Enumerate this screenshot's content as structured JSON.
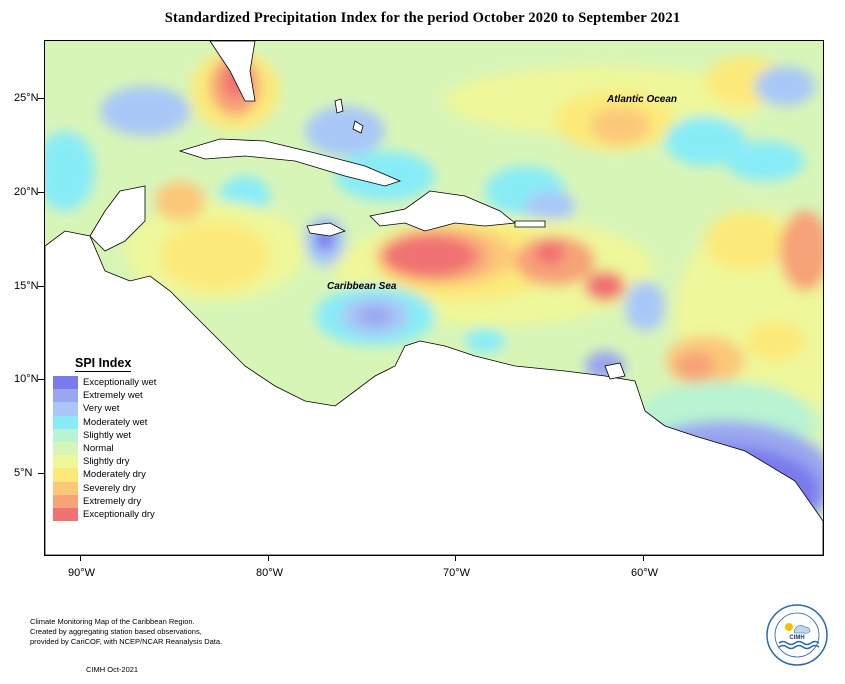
{
  "title": "Standardized Precipitation Index for the period October 2020 to September 2021",
  "map": {
    "ocean_labels": [
      {
        "text": "Atlantic Ocean"
      },
      {
        "text": "Caribbean Sea"
      }
    ],
    "lat_labels": [
      "25°N",
      "20°N",
      "15°N",
      "10°N",
      "5°N"
    ],
    "lon_labels": [
      "90°W",
      "80°W",
      "70°W",
      "60°W"
    ]
  },
  "legend": {
    "title": "SPI Index",
    "items": [
      {
        "label": "Exceptionally wet",
        "color": "#7a7aec"
      },
      {
        "label": "Extremely wet",
        "color": "#9aa6f0"
      },
      {
        "label": "Very wet",
        "color": "#a9c8f7"
      },
      {
        "label": "Moderately wet",
        "color": "#88ecf7"
      },
      {
        "label": "Slightly wet",
        "color": "#b8f3d2"
      },
      {
        "label": "Normal",
        "color": "#d8f5b8"
      },
      {
        "label": "Slightly dry",
        "color": "#eef79a"
      },
      {
        "label": "Moderately dry",
        "color": "#fbea7a"
      },
      {
        "label": "Severely dry",
        "color": "#fbc87a"
      },
      {
        "label": "Extremely dry",
        "color": "#f7a278"
      },
      {
        "label": "Exceptionally dry",
        "color": "#f07272"
      }
    ]
  },
  "footer": {
    "lines": [
      "Climate Monitoring Map of the Caribbean Region.",
      "Created by aggregating station based observations,",
      "provided by CariCOF, with NCEP/NCAR Reanalysis Data."
    ],
    "credit": "CIMH Oct-2021"
  },
  "logo": {
    "text": "CIMH"
  }
}
